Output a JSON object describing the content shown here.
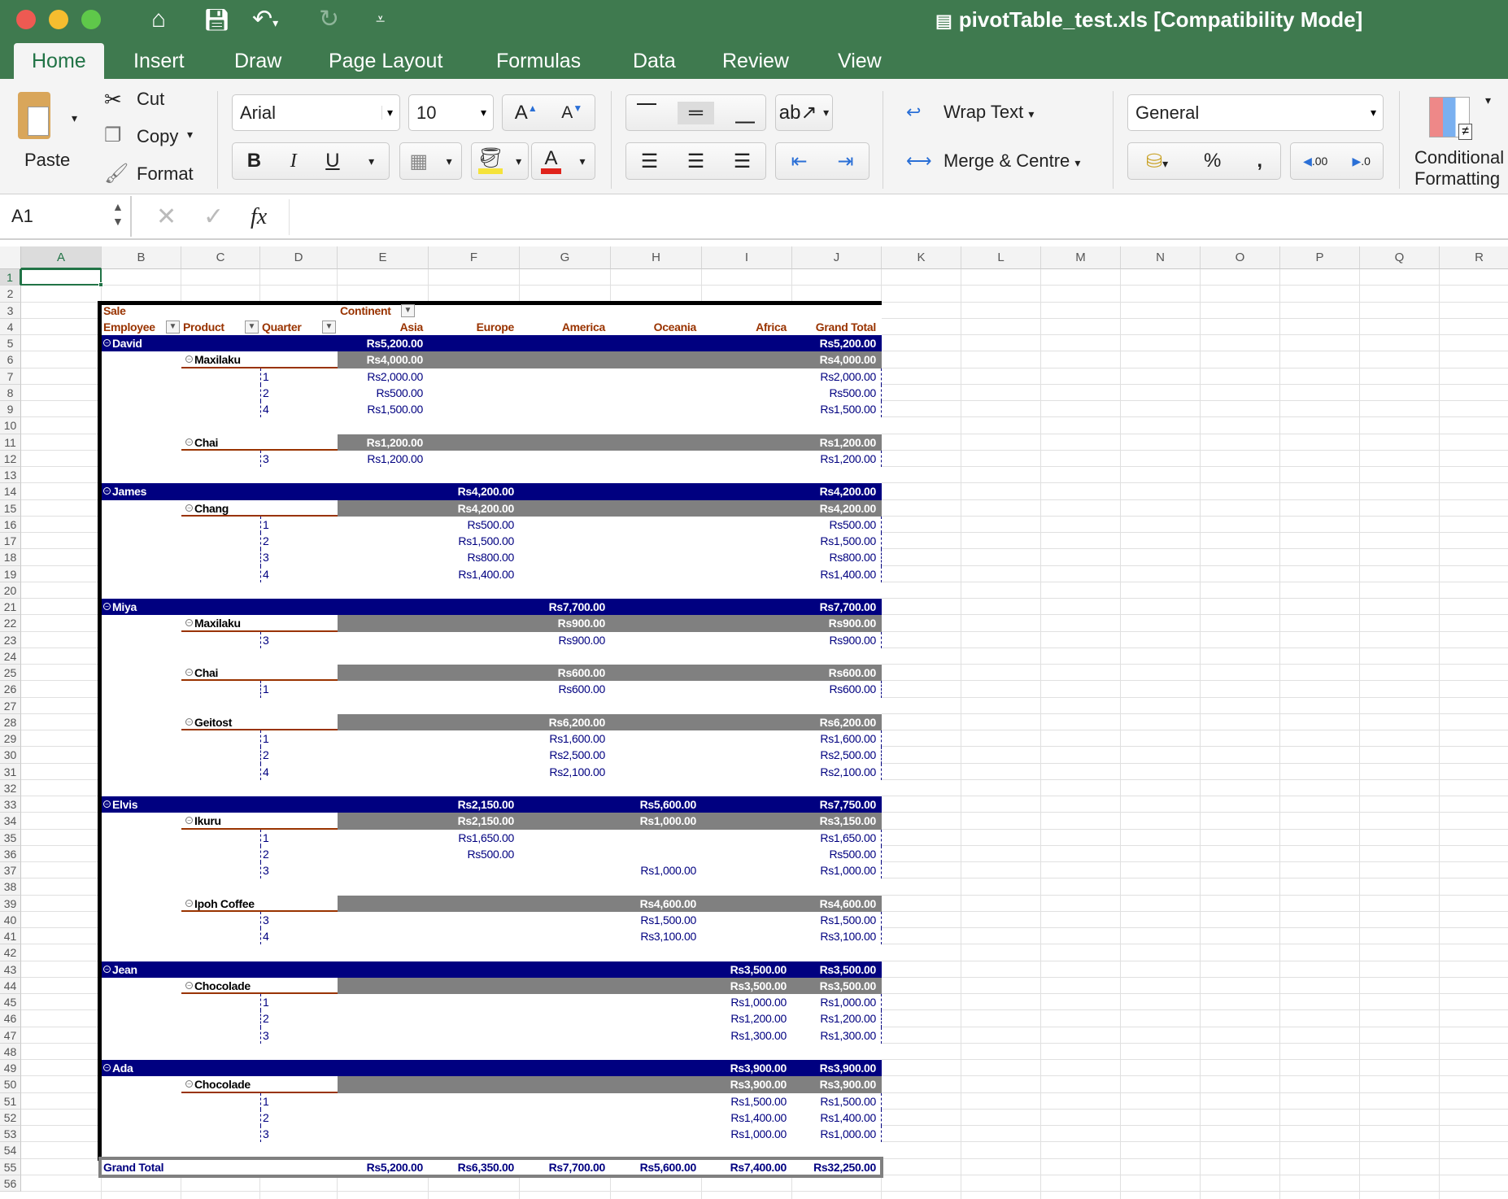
{
  "window": {
    "title": "pivotTable_test.xls  [Compatibility Mode]"
  },
  "tabs": [
    "Home",
    "Insert",
    "Draw",
    "Page Layout",
    "Formulas",
    "Data",
    "Review",
    "View"
  ],
  "active_tab": "Home",
  "ribbon": {
    "paste": "Paste",
    "cut": "Cut",
    "copy": "Copy",
    "format": "Format",
    "font_name": "Arial",
    "font_size": "10",
    "bold": "B",
    "italic": "I",
    "underline": "U",
    "wrap_text": "Wrap Text",
    "merge_centre": "Merge & Centre",
    "number_format": "General",
    "percent": "%",
    "comma": ",",
    "increase_decimal": ".00",
    "decrease_decimal": ".0",
    "conditional_formatting": [
      "Conditional",
      "Formatting"
    ]
  },
  "formula_bar": {
    "name_box": "A1",
    "fx": "fx",
    "formula": ""
  },
  "columns": [
    "A",
    "B",
    "C",
    "D",
    "E",
    "F",
    "G",
    "H",
    "I",
    "J",
    "K",
    "L",
    "M",
    "N",
    "O",
    "P",
    "Q",
    "R"
  ],
  "rows": [
    1,
    2,
    3,
    4,
    5,
    6,
    7,
    8,
    9,
    10,
    11,
    12,
    13,
    14,
    15,
    16,
    17,
    18,
    19,
    20,
    21,
    22,
    23,
    24,
    25,
    26,
    27,
    28,
    29,
    30,
    31,
    32,
    33,
    34,
    35,
    36,
    37,
    38,
    39,
    40,
    41,
    42,
    43,
    44,
    45,
    46,
    47,
    48,
    49,
    50,
    51,
    52,
    53,
    54,
    55,
    56
  ],
  "selected_cell": "A1",
  "colors": {
    "accent": "#217346",
    "employee_bar": "#000080",
    "product_bar": "#808080",
    "header_text": "#993300",
    "value_text": "#000080"
  },
  "pivot": {
    "data_field": "Sale",
    "column_field": "Continent",
    "row_fields": [
      "Employee",
      "Product",
      "Quarter"
    ],
    "column_headers": [
      "Asia",
      "Europe",
      "America",
      "Oceania",
      "Africa",
      "Grand Total"
    ],
    "rows": [
      {
        "type": "employee",
        "label": "David",
        "values": [
          "Rs5,200.00",
          "",
          "",
          "",
          "",
          "Rs5,200.00"
        ]
      },
      {
        "type": "product",
        "label": "Maxilaku",
        "values": [
          "Rs4,000.00",
          "",
          "",
          "",
          "",
          "Rs4,000.00"
        ]
      },
      {
        "type": "quarter",
        "label": "1",
        "values": [
          "Rs2,000.00",
          "",
          "",
          "",
          "",
          "Rs2,000.00"
        ]
      },
      {
        "type": "quarter",
        "label": "2",
        "values": [
          "Rs500.00",
          "",
          "",
          "",
          "",
          "Rs500.00"
        ]
      },
      {
        "type": "quarter",
        "label": "4",
        "values": [
          "Rs1,500.00",
          "",
          "",
          "",
          "",
          "Rs1,500.00"
        ]
      },
      {
        "type": "blank"
      },
      {
        "type": "product",
        "label": "Chai",
        "values": [
          "Rs1,200.00",
          "",
          "",
          "",
          "",
          "Rs1,200.00"
        ]
      },
      {
        "type": "quarter",
        "label": "3",
        "values": [
          "Rs1,200.00",
          "",
          "",
          "",
          "",
          "Rs1,200.00"
        ]
      },
      {
        "type": "blank"
      },
      {
        "type": "employee",
        "label": "James",
        "values": [
          "",
          "Rs4,200.00",
          "",
          "",
          "",
          "Rs4,200.00"
        ]
      },
      {
        "type": "product",
        "label": "Chang",
        "values": [
          "",
          "Rs4,200.00",
          "",
          "",
          "",
          "Rs4,200.00"
        ]
      },
      {
        "type": "quarter",
        "label": "1",
        "values": [
          "",
          "Rs500.00",
          "",
          "",
          "",
          "Rs500.00"
        ]
      },
      {
        "type": "quarter",
        "label": "2",
        "values": [
          "",
          "Rs1,500.00",
          "",
          "",
          "",
          "Rs1,500.00"
        ]
      },
      {
        "type": "quarter",
        "label": "3",
        "values": [
          "",
          "Rs800.00",
          "",
          "",
          "",
          "Rs800.00"
        ]
      },
      {
        "type": "quarter",
        "label": "4",
        "values": [
          "",
          "Rs1,400.00",
          "",
          "",
          "",
          "Rs1,400.00"
        ]
      },
      {
        "type": "blank"
      },
      {
        "type": "employee",
        "label": "Miya",
        "values": [
          "",
          "",
          "Rs7,700.00",
          "",
          "",
          "Rs7,700.00"
        ]
      },
      {
        "type": "product",
        "label": "Maxilaku",
        "values": [
          "",
          "",
          "Rs900.00",
          "",
          "",
          "Rs900.00"
        ]
      },
      {
        "type": "quarter",
        "label": "3",
        "values": [
          "",
          "",
          "Rs900.00",
          "",
          "",
          "Rs900.00"
        ]
      },
      {
        "type": "blank"
      },
      {
        "type": "product",
        "label": "Chai",
        "values": [
          "",
          "",
          "Rs600.00",
          "",
          "",
          "Rs600.00"
        ]
      },
      {
        "type": "quarter",
        "label": "1",
        "values": [
          "",
          "",
          "Rs600.00",
          "",
          "",
          "Rs600.00"
        ]
      },
      {
        "type": "blank"
      },
      {
        "type": "product",
        "label": "Geitost",
        "values": [
          "",
          "",
          "Rs6,200.00",
          "",
          "",
          "Rs6,200.00"
        ]
      },
      {
        "type": "quarter",
        "label": "1",
        "values": [
          "",
          "",
          "Rs1,600.00",
          "",
          "",
          "Rs1,600.00"
        ]
      },
      {
        "type": "quarter",
        "label": "2",
        "values": [
          "",
          "",
          "Rs2,500.00",
          "",
          "",
          "Rs2,500.00"
        ]
      },
      {
        "type": "quarter",
        "label": "4",
        "values": [
          "",
          "",
          "Rs2,100.00",
          "",
          "",
          "Rs2,100.00"
        ]
      },
      {
        "type": "blank"
      },
      {
        "type": "employee",
        "label": "Elvis",
        "values": [
          "",
          "Rs2,150.00",
          "",
          "Rs5,600.00",
          "",
          "Rs7,750.00"
        ]
      },
      {
        "type": "product",
        "label": "Ikuru",
        "values": [
          "",
          "Rs2,150.00",
          "",
          "Rs1,000.00",
          "",
          "Rs3,150.00"
        ]
      },
      {
        "type": "quarter",
        "label": "1",
        "values": [
          "",
          "Rs1,650.00",
          "",
          "",
          "",
          "Rs1,650.00"
        ]
      },
      {
        "type": "quarter",
        "label": "2",
        "values": [
          "",
          "Rs500.00",
          "",
          "",
          "",
          "Rs500.00"
        ]
      },
      {
        "type": "quarter",
        "label": "3",
        "values": [
          "",
          "",
          "",
          "Rs1,000.00",
          "",
          "Rs1,000.00"
        ]
      },
      {
        "type": "blank"
      },
      {
        "type": "product",
        "label": "Ipoh Coffee",
        "values": [
          "",
          "",
          "",
          "Rs4,600.00",
          "",
          "Rs4,600.00"
        ]
      },
      {
        "type": "quarter",
        "label": "3",
        "values": [
          "",
          "",
          "",
          "Rs1,500.00",
          "",
          "Rs1,500.00"
        ]
      },
      {
        "type": "quarter",
        "label": "4",
        "values": [
          "",
          "",
          "",
          "Rs3,100.00",
          "",
          "Rs3,100.00"
        ]
      },
      {
        "type": "blank"
      },
      {
        "type": "employee",
        "label": "Jean",
        "values": [
          "",
          "",
          "",
          "",
          "Rs3,500.00",
          "Rs3,500.00"
        ]
      },
      {
        "type": "product",
        "label": "Chocolade",
        "values": [
          "",
          "",
          "",
          "",
          "Rs3,500.00",
          "Rs3,500.00"
        ]
      },
      {
        "type": "quarter",
        "label": "1",
        "values": [
          "",
          "",
          "",
          "",
          "Rs1,000.00",
          "Rs1,000.00"
        ]
      },
      {
        "type": "quarter",
        "label": "2",
        "values": [
          "",
          "",
          "",
          "",
          "Rs1,200.00",
          "Rs1,200.00"
        ]
      },
      {
        "type": "quarter",
        "label": "3",
        "values": [
          "",
          "",
          "",
          "",
          "Rs1,300.00",
          "Rs1,300.00"
        ]
      },
      {
        "type": "blank"
      },
      {
        "type": "employee",
        "label": "Ada",
        "values": [
          "",
          "",
          "",
          "",
          "Rs3,900.00",
          "Rs3,900.00"
        ]
      },
      {
        "type": "product",
        "label": "Chocolade",
        "values": [
          "",
          "",
          "",
          "",
          "Rs3,900.00",
          "Rs3,900.00"
        ]
      },
      {
        "type": "quarter",
        "label": "1",
        "values": [
          "",
          "",
          "",
          "",
          "Rs1,500.00",
          "Rs1,500.00"
        ]
      },
      {
        "type": "quarter",
        "label": "2",
        "values": [
          "",
          "",
          "",
          "",
          "Rs1,400.00",
          "Rs1,400.00"
        ]
      },
      {
        "type": "quarter",
        "label": "3",
        "values": [
          "",
          "",
          "",
          "",
          "Rs1,000.00",
          "Rs1,000.00"
        ]
      },
      {
        "type": "blank"
      }
    ],
    "grand_total": {
      "label": "Grand Total",
      "values": [
        "Rs5,200.00",
        "Rs6,350.00",
        "Rs7,700.00",
        "Rs5,600.00",
        "Rs7,400.00",
        "Rs32,250.00"
      ]
    }
  }
}
